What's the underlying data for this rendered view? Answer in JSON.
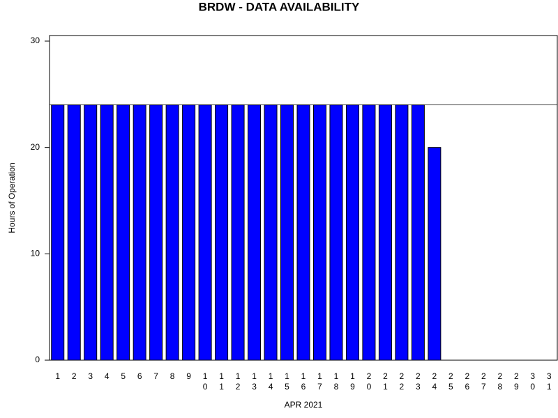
{
  "chart_data": {
    "type": "bar",
    "title": "BRDW - DATA AVAILABILITY",
    "x_label": "APR 2021",
    "y_label": "Hours of Operation",
    "categories": [
      "1",
      "2",
      "3",
      "4",
      "5",
      "6",
      "7",
      "8",
      "9",
      "10",
      "11",
      "12",
      "13",
      "14",
      "15",
      "16",
      "17",
      "18",
      "19",
      "20",
      "21",
      "22",
      "23",
      "24",
      "25",
      "26",
      "27",
      "28",
      "29",
      "30",
      "31"
    ],
    "values": [
      24,
      24,
      24,
      24,
      24,
      24,
      24,
      24,
      24,
      24,
      24,
      24,
      24,
      24,
      24,
      24,
      24,
      24,
      24,
      24,
      24,
      24,
      24,
      20,
      null,
      null,
      null,
      null,
      null,
      null,
      null
    ],
    "color": "#0000ff",
    "reference_line": 24,
    "ylim": [
      0,
      30
    ],
    "yticks": [
      0,
      10,
      20,
      30
    ]
  }
}
